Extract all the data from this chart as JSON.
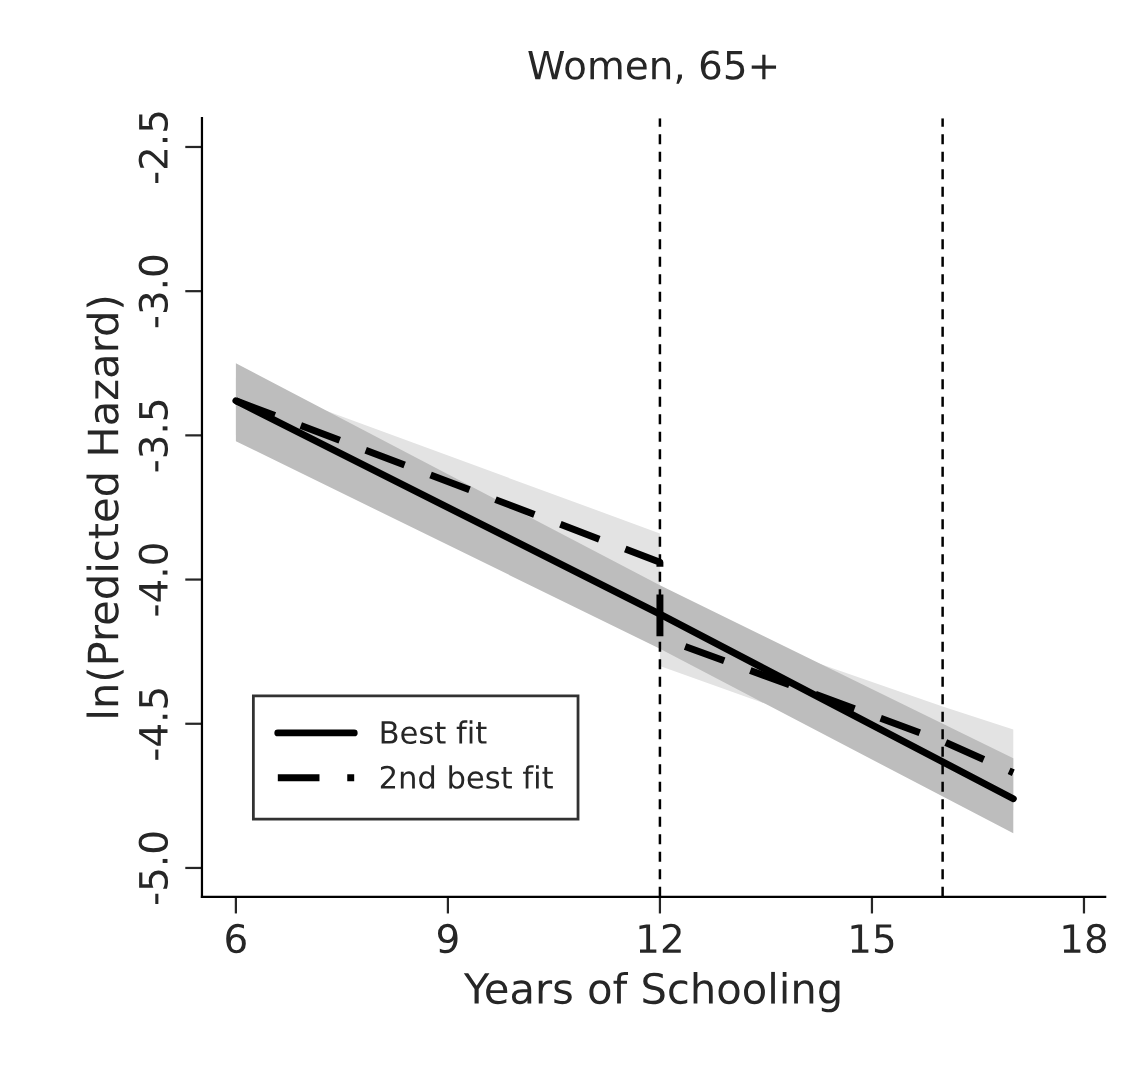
{
  "chart_data": {
    "type": "line",
    "title": "Women, 65+",
    "xlabel": "Years of Schooling",
    "ylabel": "ln(Predicted Hazard)",
    "series": [
      {
        "name": "Best fit",
        "color": "#000000",
        "line_style": "solid",
        "x": [
          6,
          12,
          17
        ],
        "values": [
          -3.38,
          -4.12,
          -4.76
        ],
        "lower": [
          -3.52,
          -4.24,
          -4.88
        ],
        "upper": [
          -3.25,
          -4.02,
          -4.62
        ]
      },
      {
        "name": "2nd best fit",
        "color": "#000000",
        "line_style": "dashed",
        "x": [
          6,
          12,
          12,
          16,
          17
        ],
        "values": [
          -3.38,
          -3.94,
          -4.2,
          -4.56,
          -4.67
        ],
        "lower": [
          -3.5,
          -4.05,
          -4.3,
          -4.65,
          -4.8
        ],
        "upper": [
          -3.3,
          -3.84,
          -4.1,
          -4.44,
          -4.52
        ]
      }
    ],
    "ref_lines": [
      {
        "axis": "x",
        "value": 12,
        "color": "#000000",
        "line_style": "dashed"
      },
      {
        "axis": "x",
        "value": 16,
        "color": "#000000",
        "line_style": "dashed"
      }
    ],
    "xlim": [
      5.52,
      18.3
    ],
    "ylim": [
      -5.1,
      -2.4
    ],
    "xticks": [
      6,
      9,
      12,
      15,
      18
    ],
    "yticks": [
      {
        "value": -5,
        "label": "-5.0"
      },
      -4.5,
      {
        "value": -4,
        "label": "-4.0"
      },
      -3.5,
      {
        "value": -3,
        "label": "-3.0"
      },
      -2.5
    ],
    "grid": false,
    "legend": "bottom left"
  }
}
